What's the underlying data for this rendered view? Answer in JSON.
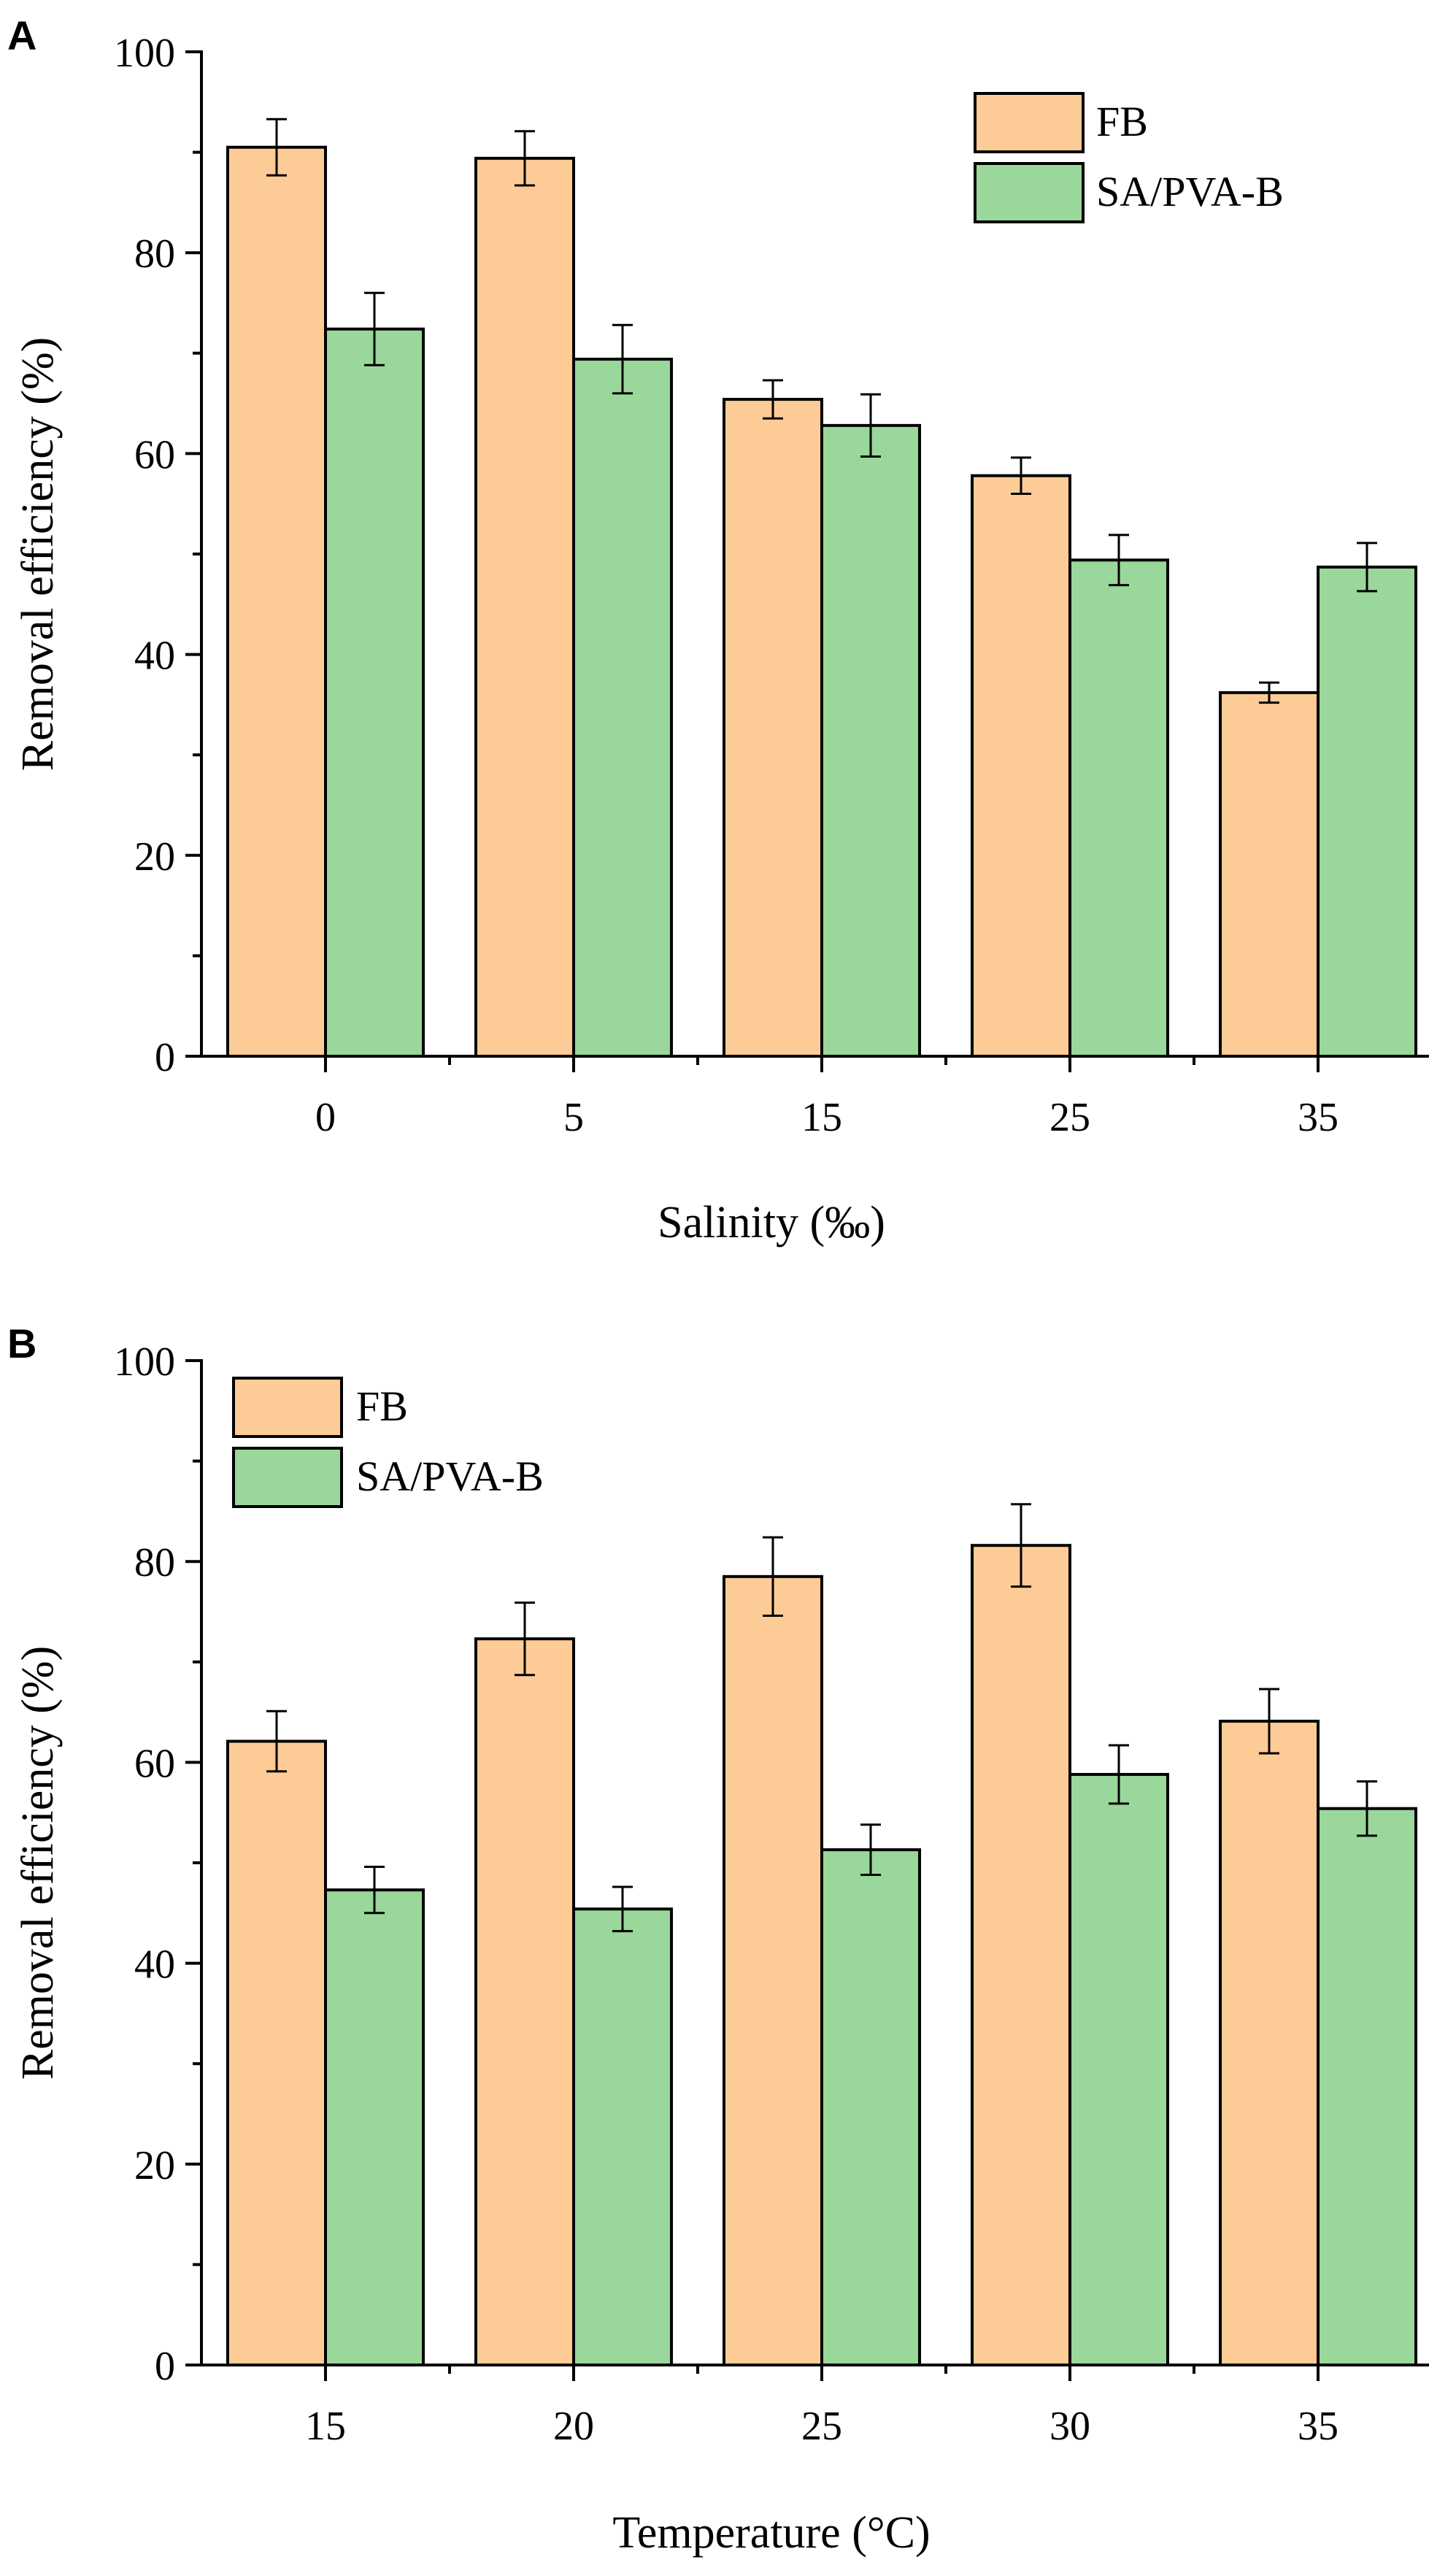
{
  "colors": {
    "fb": "#fdcb96",
    "sa": "#9ad79a",
    "axis": "#000000"
  },
  "chart_data": [
    {
      "panel": "A",
      "type": "bar",
      "title": "",
      "xlabel": "Salinity (‰)",
      "ylabel": "Removal efficiency (%)",
      "categories": [
        "0",
        "5",
        "15",
        "25",
        "35"
      ],
      "ylim": [
        0,
        100
      ],
      "yticks": [
        "0",
        "20",
        "40",
        "60",
        "80",
        "100"
      ],
      "legend_position": "top-right",
      "series": [
        {
          "name": "FB",
          "values": [
            90.5,
            89.4,
            65.4,
            57.8,
            36.2
          ],
          "errors": [
            2.8,
            2.7,
            1.9,
            1.8,
            1.0
          ]
        },
        {
          "name": "SA/PVA-B",
          "values": [
            72.4,
            69.4,
            62.8,
            49.4,
            48.7
          ],
          "errors": [
            3.6,
            3.4,
            3.1,
            2.5,
            2.4
          ]
        }
      ]
    },
    {
      "panel": "B",
      "type": "bar",
      "title": "",
      "xlabel": "Temperature (°C)",
      "ylabel": "Removal efficiency (%)",
      "categories": [
        "15",
        "20",
        "25",
        "30",
        "35"
      ],
      "ylim": [
        0,
        100
      ],
      "yticks": [
        "0",
        "20",
        "40",
        "60",
        "80",
        "100"
      ],
      "legend_position": "top-left",
      "series": [
        {
          "name": "FB",
          "values": [
            62.1,
            72.3,
            78.5,
            81.6,
            64.1
          ],
          "errors": [
            3.0,
            3.6,
            3.9,
            4.1,
            3.2
          ]
        },
        {
          "name": "SA/PVA-B",
          "values": [
            47.3,
            45.4,
            51.3,
            58.8,
            55.4
          ],
          "errors": [
            2.3,
            2.2,
            2.5,
            2.9,
            2.7
          ]
        }
      ]
    }
  ]
}
